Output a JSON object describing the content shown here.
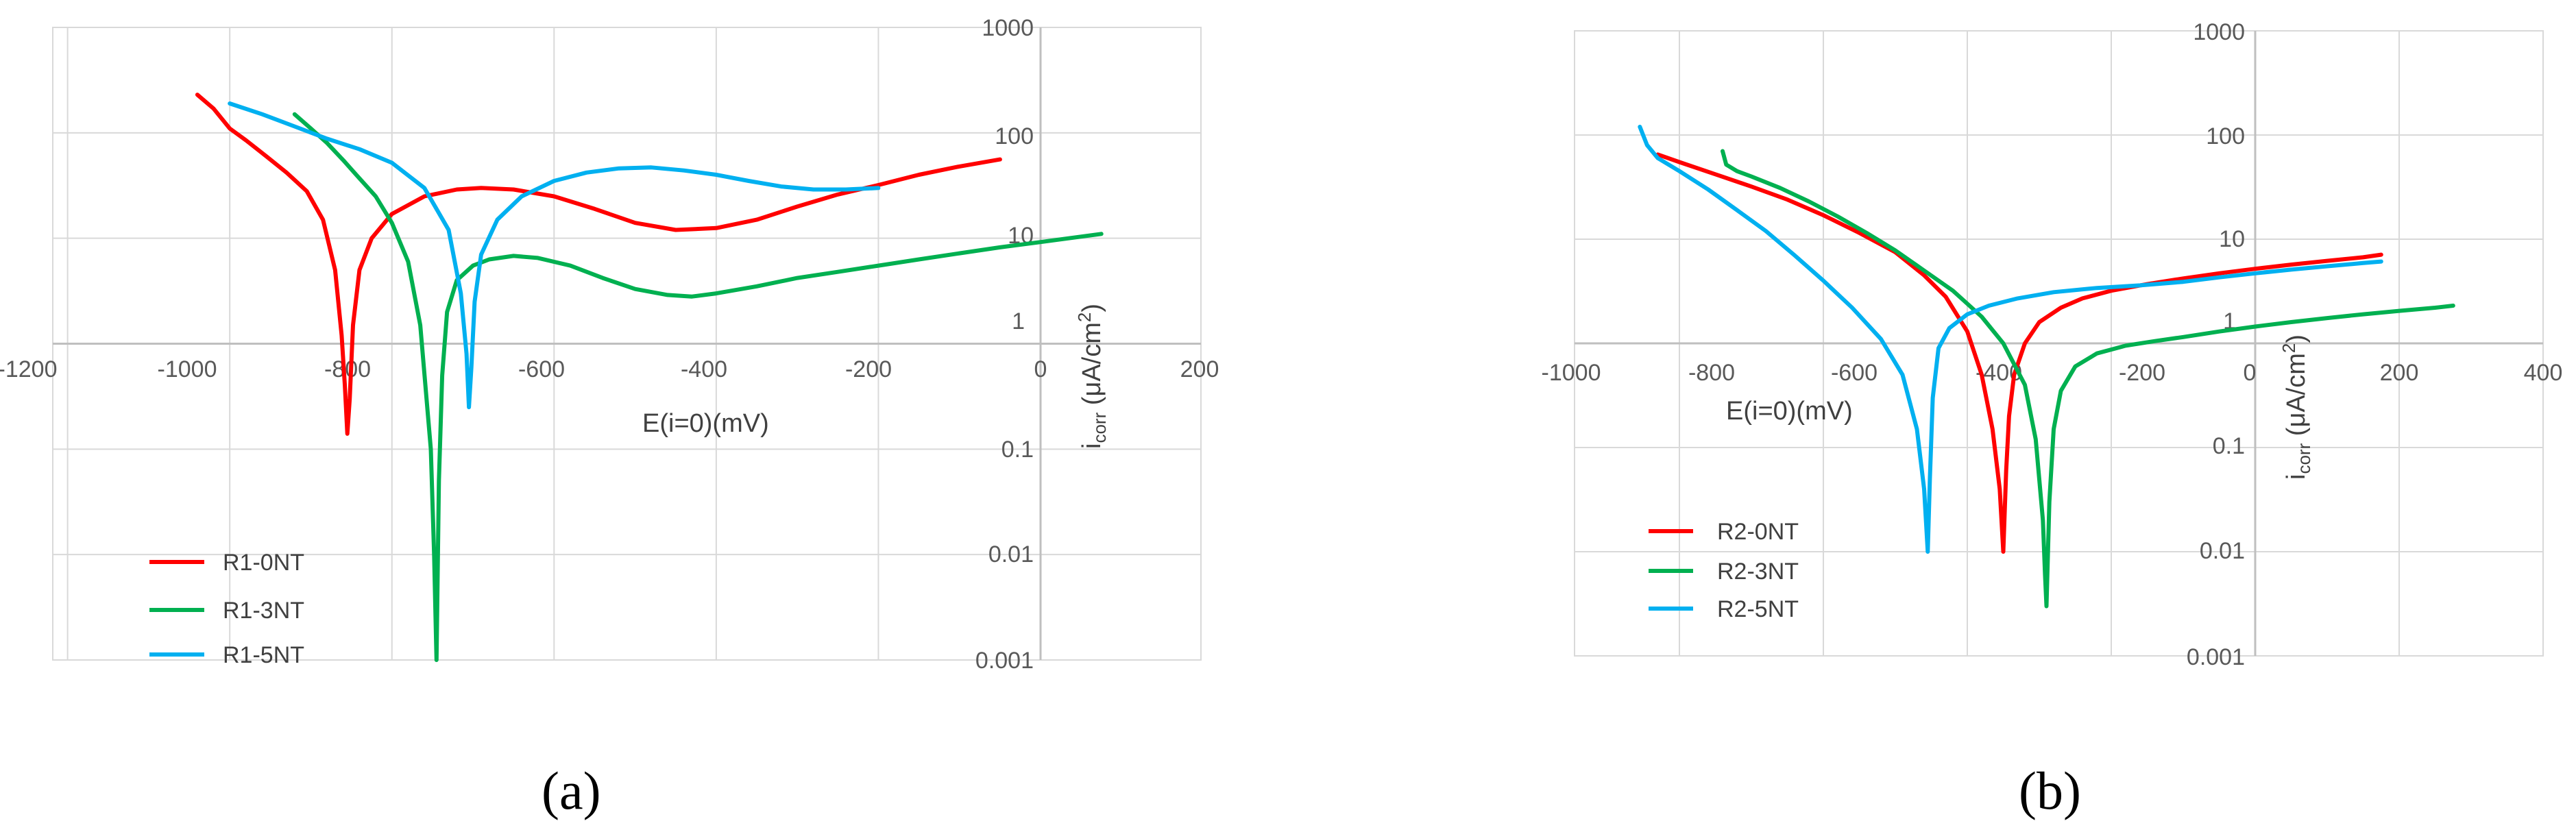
{
  "chart_data": [
    {
      "type": "line",
      "panel_label": "a",
      "xlabel": "E(i=0)(mV)",
      "ylabel_main": "i",
      "ylabel_sub": "corr",
      "ylabel_unit": " (μA/cm",
      "ylabel_sup": "2",
      "ylabel_close": ")",
      "y_scale": "log",
      "xlim": [
        -1200,
        200
      ],
      "ylim": [
        0.001,
        1000
      ],
      "x_ticks": [
        "-1200",
        "-1000",
        "-800",
        "-600",
        "-400",
        "-200",
        "0",
        "200"
      ],
      "y_ticks": [
        "1000",
        "100",
        "10",
        "1",
        "0.1",
        "0.01",
        "0.001"
      ],
      "grid": true,
      "legend_position": "bottom-left",
      "series": [
        {
          "name": "R1-0NT",
          "color": "#ff0000",
          "x": [
            -1040,
            -1020,
            -1000,
            -980,
            -955,
            -930,
            -905,
            -885,
            -870,
            -862,
            -858,
            -855,
            -852,
            -848,
            -840,
            -825,
            -800,
            -760,
            -720,
            -690,
            -650,
            -600,
            -550,
            -500,
            -450,
            -400,
            -350,
            -300,
            -250,
            -200,
            -150,
            -100,
            -50
          ],
          "y": [
            230,
            170,
            110,
            85,
            60,
            42,
            28,
            15,
            5,
            1.2,
            0.4,
            0.14,
            0.3,
            1.5,
            5,
            10,
            17,
            25,
            29,
            30,
            29,
            25,
            19,
            14,
            12,
            12.5,
            15,
            20,
            26,
            32,
            40,
            48,
            56
          ]
        },
        {
          "name": "R1-3NT",
          "color": "#00b050",
          "x": [
            -920,
            -900,
            -880,
            -860,
            -840,
            -820,
            -800,
            -780,
            -765,
            -752,
            -748,
            -745,
            -742,
            -738,
            -732,
            -720,
            -700,
            -680,
            -650,
            -620,
            -580,
            -540,
            -500,
            -460,
            -430,
            -400,
            -350,
            -300,
            -250,
            -200,
            -150,
            -100,
            -50,
            0,
            75
          ],
          "y": [
            150,
            110,
            80,
            55,
            37,
            25,
            14,
            6,
            1.5,
            0.1,
            0.01,
            0.001,
            0.05,
            0.5,
            2,
            4,
            5.5,
            6.3,
            6.8,
            6.5,
            5.5,
            4.2,
            3.3,
            2.9,
            2.8,
            3,
            3.5,
            4.2,
            4.8,
            5.5,
            6.3,
            7.2,
            8.2,
            9.2,
            11
          ]
        },
        {
          "name": "R1-5NT",
          "color": "#00b0f0",
          "x": [
            -1000,
            -960,
            -920,
            -880,
            -840,
            -800,
            -760,
            -730,
            -715,
            -708,
            -705,
            -702,
            -698,
            -690,
            -670,
            -640,
            -600,
            -560,
            -520,
            -480,
            -440,
            -400,
            -360,
            -320,
            -280,
            -240,
            -200
          ],
          "y": [
            190,
            150,
            115,
            88,
            70,
            52,
            30,
            12,
            3,
            0.8,
            0.25,
            0.6,
            2.5,
            7,
            15,
            25,
            35,
            42,
            46,
            47,
            44,
            40,
            35,
            31,
            29,
            29,
            30
          ]
        }
      ],
      "legend": [
        "R1-0NT",
        "R1-3NT",
        "R1-5NT"
      ]
    },
    {
      "type": "line",
      "panel_label": "b",
      "xlabel": "E(i=0)(mV)",
      "ylabel_main": "i",
      "ylabel_sub": "corr",
      "ylabel_unit": " (μA/cm",
      "ylabel_sup": "2",
      "ylabel_close": ")",
      "y_scale": "log",
      "xlim": [
        -1000,
        400
      ],
      "ylim": [
        0.001,
        1000
      ],
      "x_ticks": [
        "-1000",
        "-800",
        "-600",
        "-400",
        "-200",
        "0",
        "200",
        "400"
      ],
      "y_ticks": [
        "1000",
        "100",
        "10",
        "1",
        "0.1",
        "0.01",
        "0.001"
      ],
      "grid": true,
      "legend_position": "bottom-left",
      "series": [
        {
          "name": "R2-0NT",
          "color": "#ff0000",
          "x": [
            -830,
            -800,
            -750,
            -700,
            -650,
            -600,
            -550,
            -500,
            -460,
            -430,
            -400,
            -380,
            -365,
            -355,
            -350,
            -346,
            -342,
            -335,
            -320,
            -300,
            -270,
            -240,
            -200,
            -150,
            -100,
            -50,
            0,
            50,
            100,
            150,
            175
          ],
          "y": [
            65,
            55,
            42,
            32,
            24,
            17,
            11.5,
            7.5,
            4.5,
            2.8,
            1.3,
            0.5,
            0.15,
            0.04,
            0.01,
            0.06,
            0.2,
            0.5,
            1,
            1.6,
            2.2,
            2.7,
            3.2,
            3.7,
            4.2,
            4.7,
            5.2,
            5.7,
            6.2,
            6.7,
            7.1
          ]
        },
        {
          "name": "R2-3NT",
          "color": "#00b050",
          "x": [
            -740,
            -735,
            -720,
            -700,
            -660,
            -620,
            -580,
            -540,
            -500,
            -460,
            -420,
            -380,
            -350,
            -320,
            -305,
            -295,
            -292,
            -290,
            -286,
            -280,
            -270,
            -250,
            -220,
            -180,
            -140,
            -100,
            -50,
            0,
            50,
            100,
            150,
            200,
            250,
            275
          ],
          "y": [
            70,
            52,
            45,
            40,
            31,
            23,
            16.5,
            11.5,
            7.8,
            5,
            3.2,
            1.8,
            1,
            0.4,
            0.12,
            0.02,
            0.006,
            0.003,
            0.03,
            0.15,
            0.35,
            0.6,
            0.8,
            0.95,
            1.05,
            1.15,
            1.3,
            1.45,
            1.6,
            1.75,
            1.9,
            2.05,
            2.2,
            2.3
          ]
        },
        {
          "name": "R2-5NT",
          "color": "#00b0f0",
          "x": [
            -855,
            -845,
            -830,
            -800,
            -760,
            -720,
            -680,
            -640,
            -600,
            -560,
            -520,
            -490,
            -470,
            -460,
            -455,
            -452,
            -448,
            -440,
            -425,
            -400,
            -370,
            -330,
            -280,
            -220,
            -160,
            -100,
            -50,
            0,
            50,
            100,
            150,
            175
          ],
          "y": [
            120,
            80,
            60,
            45,
            30,
            19,
            12,
            7,
            4,
            2.2,
            1.1,
            0.5,
            0.15,
            0.04,
            0.01,
            0.05,
            0.3,
            0.9,
            1.4,
            1.9,
            2.3,
            2.7,
            3.1,
            3.4,
            3.6,
            3.9,
            4.3,
            4.7,
            5.1,
            5.5,
            5.9,
            6.1
          ]
        }
      ],
      "legend": [
        "R2-0NT",
        "R2-3NT",
        "R2-5NT"
      ]
    }
  ]
}
